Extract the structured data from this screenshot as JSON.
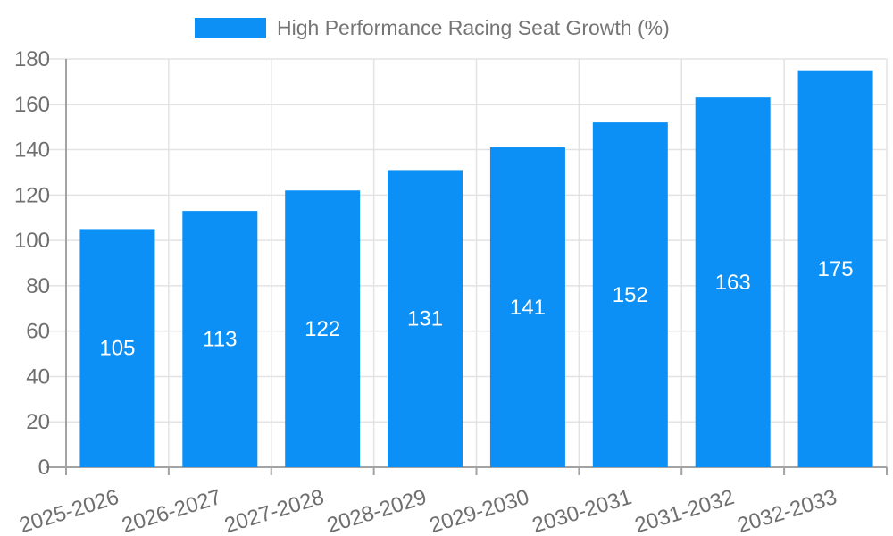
{
  "legend": {
    "label": "High Performance Racing Seat Growth (%)",
    "position": "top"
  },
  "chart_data": {
    "type": "bar",
    "title": "High Performance Racing Seat Growth (%)",
    "categories": [
      "2025-2026",
      "2026-2027",
      "2027-2028",
      "2028-2029",
      "2029-2030",
      "2030-2031",
      "2031-2032",
      "2032-2033"
    ],
    "values": [
      105,
      113,
      122,
      131,
      141,
      152,
      163,
      175
    ],
    "xlabel": "",
    "ylabel": "",
    "ylim": [
      0,
      180
    ],
    "yticks": [
      0,
      20,
      40,
      60,
      80,
      100,
      120,
      140,
      160,
      180
    ],
    "grid": true,
    "legend_position": "top",
    "value_labels_inside_bars": true,
    "colors": {
      "bar": "#0d90f5",
      "bar_value_label": "#ffffff",
      "axis": "#a3a3a3",
      "gridline": "#e3e3e3",
      "tick_label": "#6f6f6f",
      "legend_text": "#757575",
      "background": "#ffffff"
    }
  }
}
